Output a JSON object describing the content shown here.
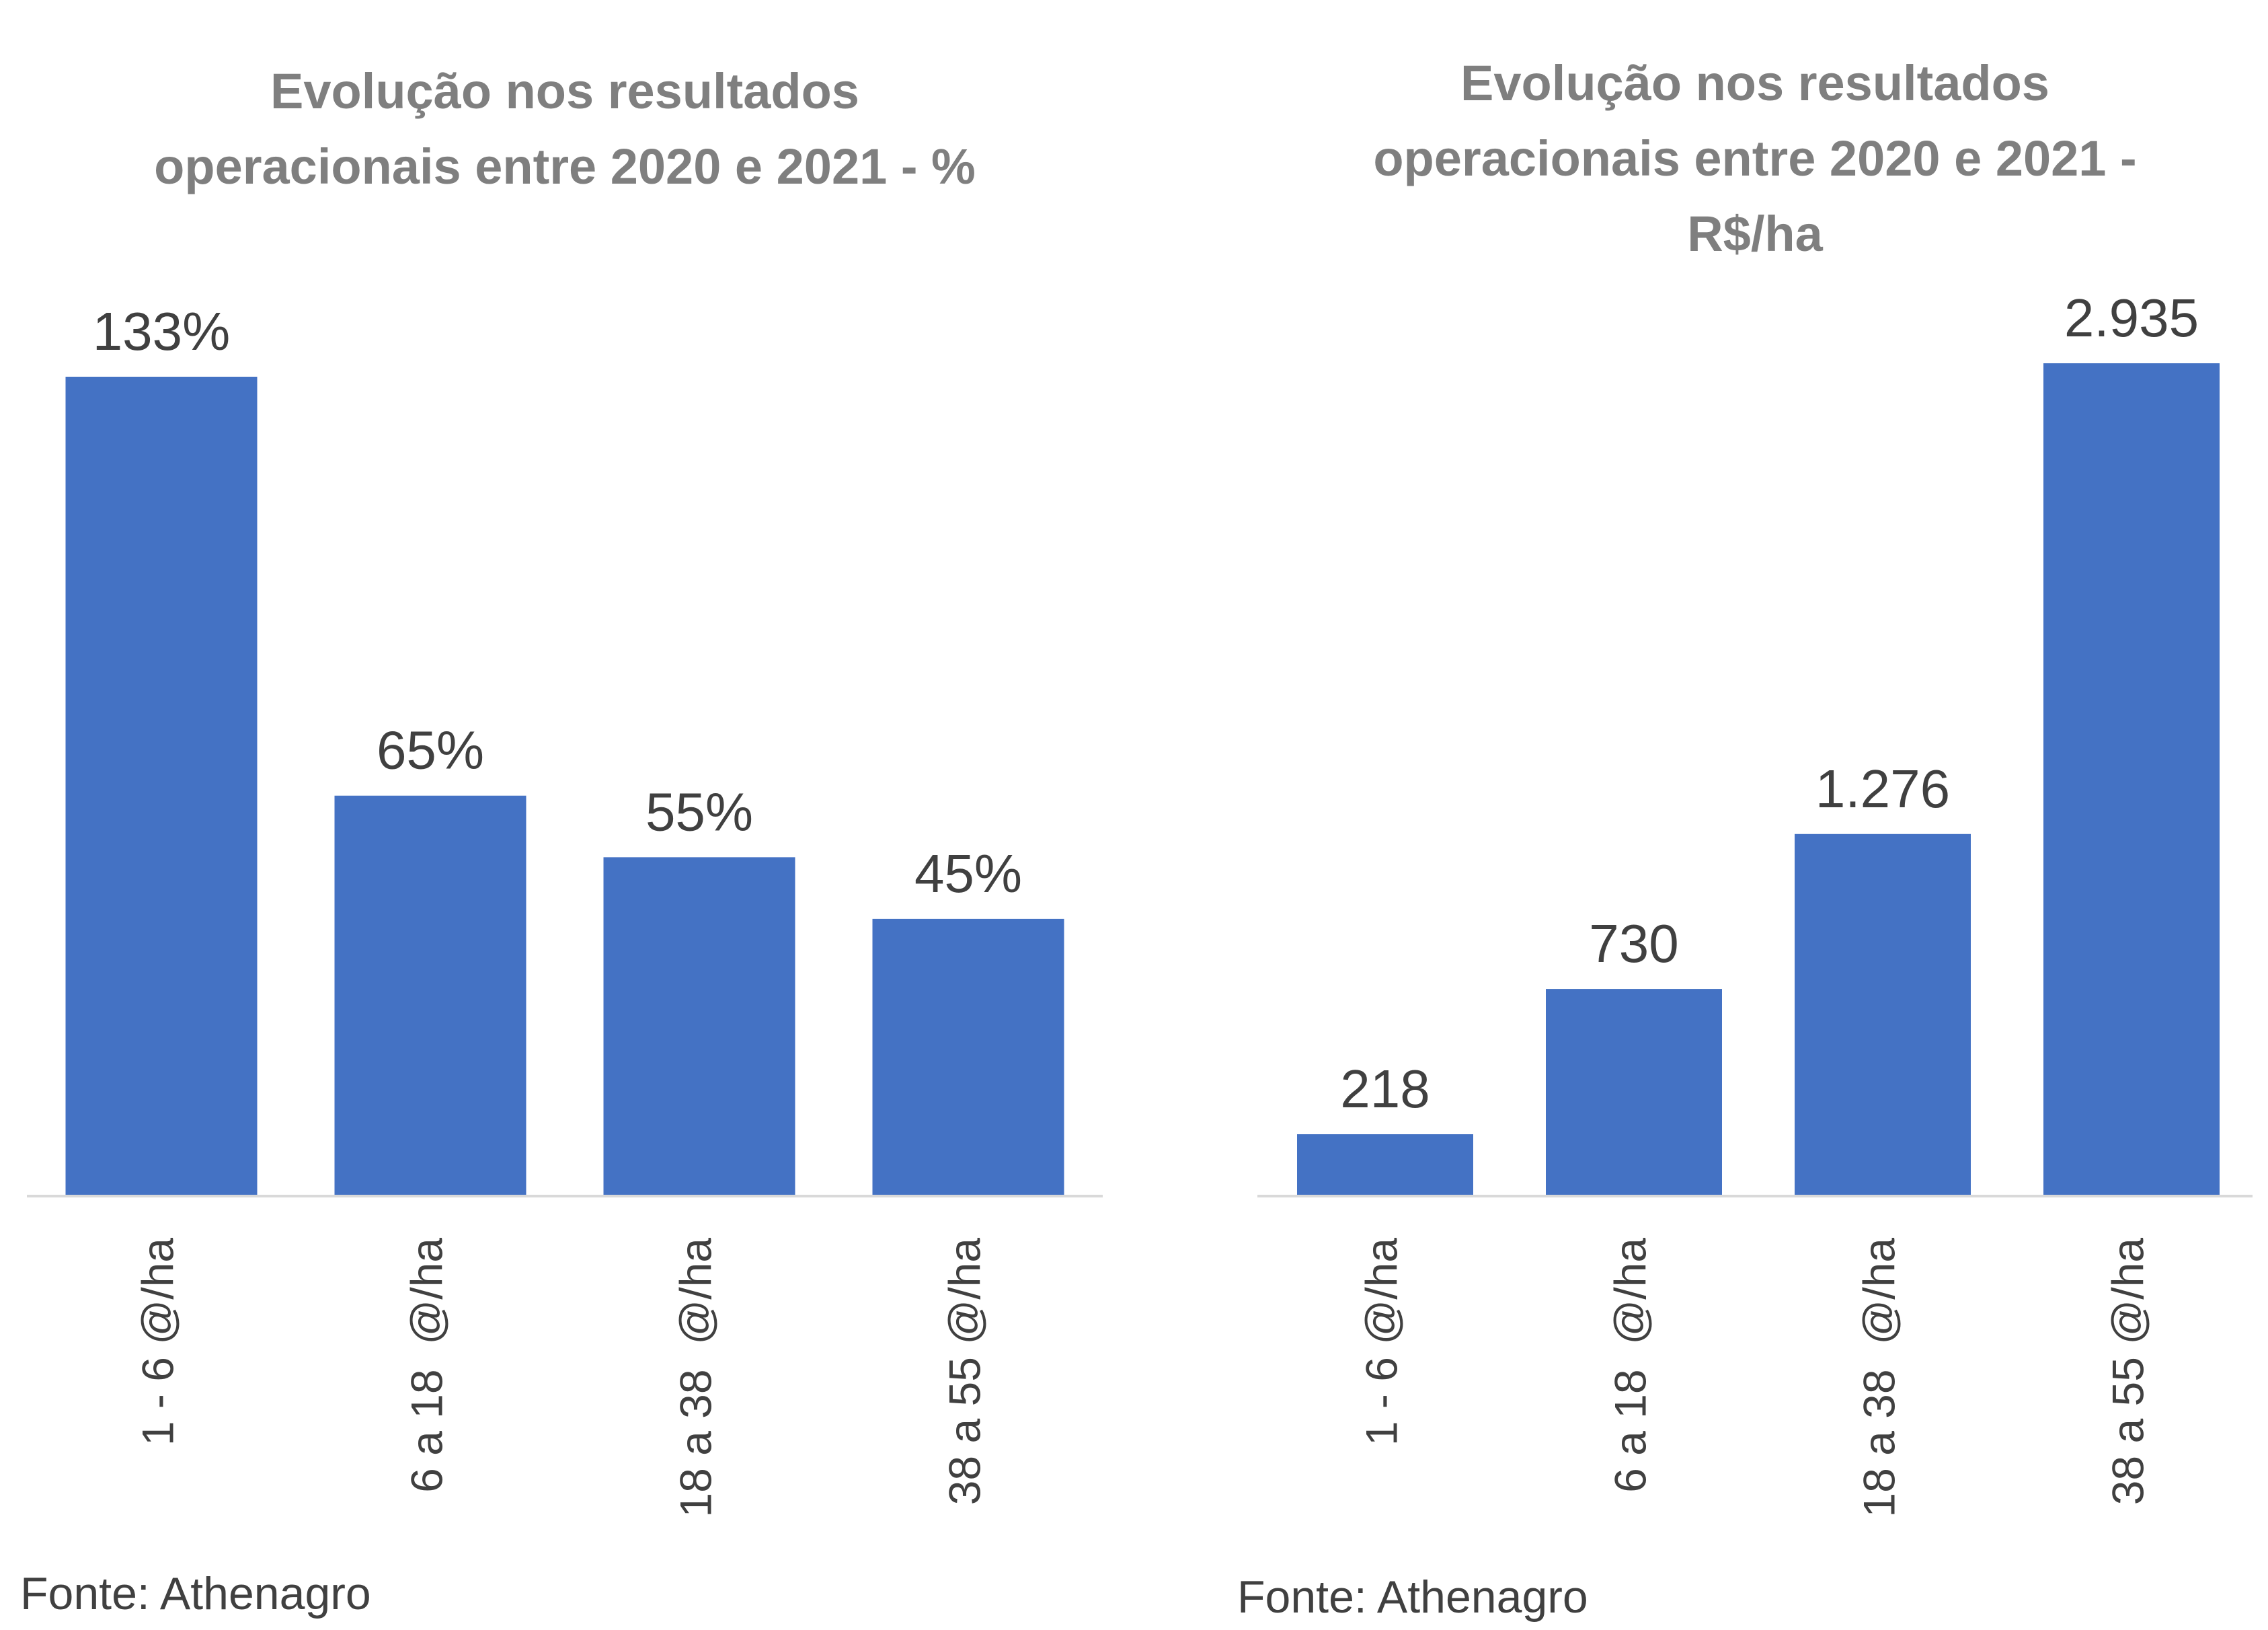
{
  "chart_data": [
    {
      "type": "bar",
      "title": "Evolução nos resultados operacionais entre 2020 e 2021 - %",
      "categories": [
        "1 - 6 @/ha",
        "6 a 18  @/ha",
        "18 a 38  @/ha",
        "38 a 55 @/ha"
      ],
      "values": [
        133,
        65,
        55,
        45
      ],
      "data_labels": [
        "133%",
        "65%",
        "55%",
        "45%"
      ],
      "unit": "%",
      "ylim": [
        0,
        133
      ],
      "grid": false,
      "legend": "none",
      "bar_color": "#4472c4",
      "source": "Fonte: Athenagro"
    },
    {
      "type": "bar",
      "title": "Evolução nos resultados operacionais entre 2020 e 2021 - R$/ha",
      "categories": [
        "1 - 6 @/ha",
        "6 a 18  @/ha",
        "18 a 38  @/ha",
        "38 a 55 @/ha"
      ],
      "values": [
        218,
        730,
        1276,
        2935
      ],
      "data_labels": [
        "218",
        "730",
        "1.276",
        "2.935"
      ],
      "unit": "R$/ha",
      "ylim": [
        0,
        2935
      ],
      "grid": false,
      "legend": "none",
      "bar_color": "#4472c4",
      "source": "Fonte: Athenagro"
    }
  ]
}
